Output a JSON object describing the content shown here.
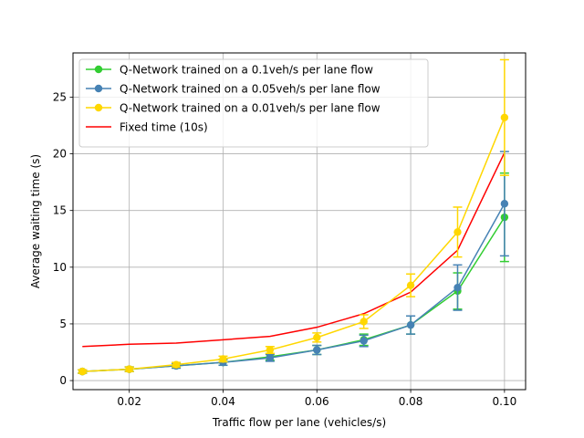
{
  "chart_data": {
    "type": "line",
    "xlabel": "Traffic flow per lane (vehicles/s)",
    "ylabel": "Average waiting time (s)",
    "xlim": [
      0.008,
      0.1045
    ],
    "ylim": [
      -0.8,
      28.9
    ],
    "xticks": [
      0.02,
      0.04,
      0.06,
      0.08,
      0.1
    ],
    "xtick_labels": [
      "0.02",
      "0.04",
      "0.06",
      "0.08",
      "0.10"
    ],
    "yticks": [
      0,
      5,
      10,
      15,
      20,
      25
    ],
    "ytick_labels": [
      "0",
      "5",
      "10",
      "15",
      "20",
      "25"
    ],
    "grid": true,
    "legend_position": "top-left",
    "x": [
      0.01,
      0.02,
      0.03,
      0.04,
      0.05,
      0.06,
      0.07,
      0.08,
      0.09,
      0.1
    ],
    "series": [
      {
        "name": "Q-Network trained on a 0.1veh/s per lane flow",
        "color": "#32cd32",
        "marker": true,
        "values": [
          0.8,
          1.0,
          1.3,
          1.6,
          2.1,
          2.7,
          3.6,
          4.9,
          7.9,
          14.4
        ],
        "errors": [
          0.15,
          0.2,
          0.2,
          0.25,
          0.3,
          0.4,
          0.5,
          0.8,
          1.6,
          3.9
        ]
      },
      {
        "name": "Q-Network trained on a 0.05veh/s per lane flow",
        "color": "#4682b4",
        "marker": true,
        "values": [
          0.8,
          1.0,
          1.3,
          1.6,
          2.0,
          2.7,
          3.5,
          4.9,
          8.2,
          15.6
        ],
        "errors": [
          0.15,
          0.2,
          0.2,
          0.25,
          0.3,
          0.4,
          0.5,
          0.8,
          2.0,
          4.6
        ]
      },
      {
        "name": "Q-Network trained on a 0.01veh/s per lane flow",
        "color": "#ffd700",
        "marker": true,
        "values": [
          0.8,
          1.0,
          1.4,
          1.9,
          2.7,
          3.8,
          5.2,
          8.4,
          13.1,
          23.2
        ],
        "errors": [
          0.15,
          0.2,
          0.2,
          0.25,
          0.3,
          0.4,
          0.6,
          1.0,
          2.2,
          5.1
        ]
      },
      {
        "name": "Fixed time (10s)",
        "color": "#ff0000",
        "marker": false,
        "values": [
          3.0,
          3.2,
          3.3,
          3.6,
          3.9,
          4.7,
          5.9,
          7.8,
          11.5,
          20.1
        ],
        "errors": null
      }
    ]
  }
}
